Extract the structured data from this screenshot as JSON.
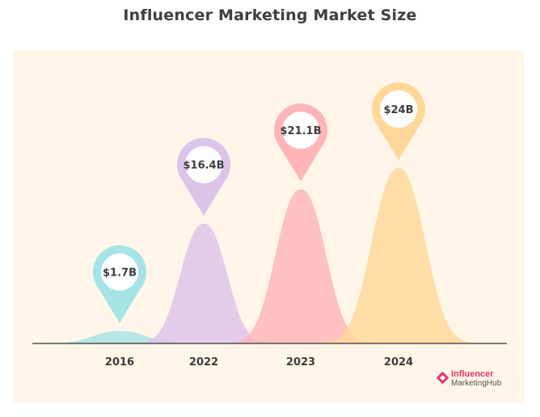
{
  "chart_data": {
    "type": "area",
    "title": "Influencer Marketing Market Size",
    "categories": [
      "2016",
      "2022",
      "2023",
      "2024"
    ],
    "values": [
      1.7,
      16.4,
      21.1,
      24
    ],
    "value_labels": [
      "$1.7B",
      "$16.4B",
      "$21.1B",
      "$24B"
    ],
    "unit": "billion USD",
    "ylim": [
      0,
      24
    ],
    "colors": [
      "#a6e3e5",
      "#dcc3ea",
      "#ffb4b8",
      "#ffd899"
    ]
  },
  "colors": {
    "panel_bg": "#fff5e8",
    "axis": "#333333",
    "pin_white": "#ffffff",
    "label_text": "#3c3c3c"
  },
  "logo": {
    "line1": "Influencer",
    "line2": "MarketingHub"
  }
}
